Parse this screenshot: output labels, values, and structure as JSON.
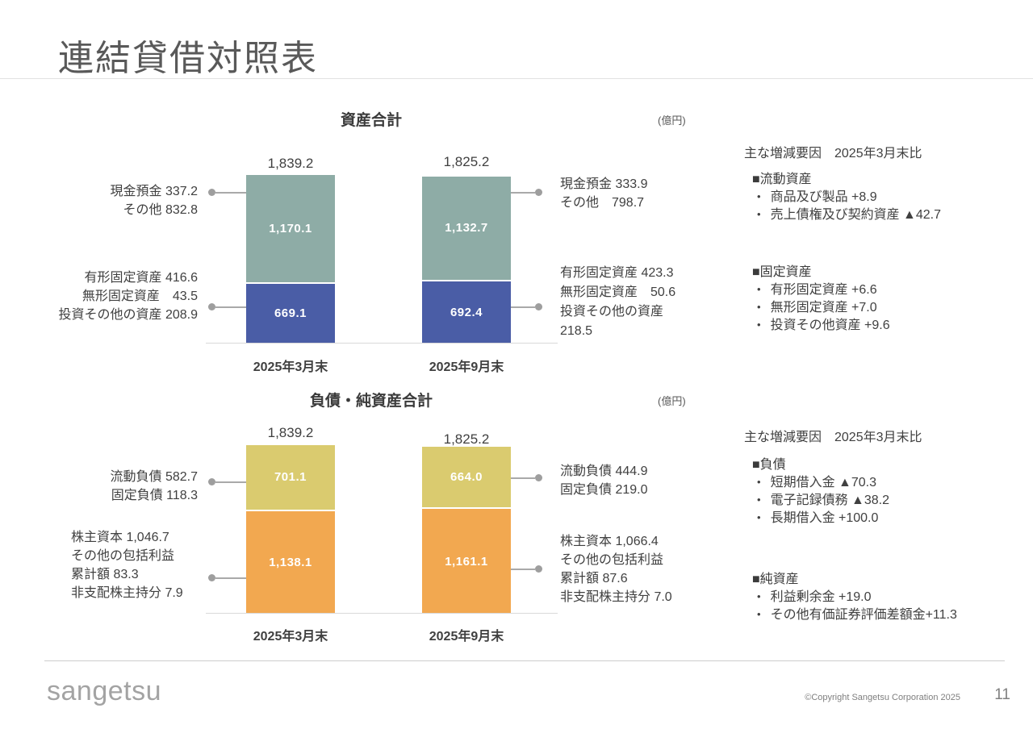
{
  "slide_title": "連結貸借対照表",
  "chart_data": [
    {
      "type": "bar",
      "stacked": true,
      "title": "資産合計",
      "unit_label": "(億円)",
      "categories": [
        "2025年3月末",
        "2025年9月末"
      ],
      "totals": [
        1839.2,
        1825.2
      ],
      "total_labels": [
        "1,839.2",
        "1,825.2"
      ],
      "series": [
        {
          "name": "流動資産",
          "color": "#8EACA6",
          "values": [
            1170.1,
            1132.7
          ],
          "value_labels": [
            "1,170.1",
            "1,132.7"
          ]
        },
        {
          "name": "固定資産",
          "color": "#4A5DA6",
          "values": [
            669.1,
            692.4
          ],
          "value_labels": [
            "669.1",
            "692.4"
          ]
        }
      ],
      "ylim": [
        0,
        1900
      ],
      "grid": false,
      "legend": "none"
    },
    {
      "type": "bar",
      "stacked": true,
      "title": "負債・純資産合計",
      "unit_label": "(億円)",
      "categories": [
        "2025年3月末",
        "2025年9月末"
      ],
      "totals": [
        1839.2,
        1825.2
      ],
      "total_labels": [
        "1,839.2",
        "1,825.2"
      ],
      "series": [
        {
          "name": "負債",
          "color": "#DACB6F",
          "values": [
            701.1,
            664.0
          ],
          "value_labels": [
            "701.1",
            "664.0"
          ]
        },
        {
          "name": "純資産",
          "color": "#F2A850",
          "values": [
            1138.1,
            1161.1
          ],
          "value_labels": [
            "1,138.1",
            "1,161.1"
          ]
        }
      ],
      "ylim": [
        0,
        1900
      ],
      "grid": false,
      "legend": "none"
    }
  ],
  "annotations": {
    "assets_left": [
      {
        "lines": [
          "現金預金 337.2",
          "その他 832.8"
        ]
      },
      {
        "lines": [
          "有形固定資産 416.6",
          "無形固定資産　43.5",
          "投資その他の資産 208.9"
        ]
      }
    ],
    "assets_right": [
      {
        "lines": [
          "現金預金 333.9",
          "その他　798.7"
        ]
      },
      {
        "lines": [
          "有形固定資産 423.3",
          "無形固定資産　50.6",
          "投資その他の資産",
          "218.5"
        ]
      }
    ],
    "liabilities_left": [
      {
        "lines": [
          "流動負債 582.7",
          "固定負債 118.3"
        ]
      },
      {
        "lines": [
          "株主資本 1,046.7",
          "その他の包括利益",
          "累計額 83.3",
          "非支配株主持分 7.9"
        ]
      }
    ],
    "liabilities_right": [
      {
        "lines": [
          "流動負債 444.9",
          "固定負債 219.0"
        ]
      },
      {
        "lines": [
          "株主資本 1,066.4",
          "その他の包括利益",
          "累計額 87.6",
          "非支配株主持分 7.0"
        ]
      }
    ]
  },
  "factors": {
    "assets": {
      "heading": "主な増減要因　2025年3月末比",
      "groups": [
        {
          "label": "■流動資産",
          "items": [
            "商品及び製品 +8.9",
            "売上債権及び契約資産 ▲42.7"
          ]
        },
        {
          "label": "■固定資産",
          "items": [
            "有形固定資産 +6.6",
            "無形固定資産 +7.0",
            "投資その他資産 +9.6"
          ]
        }
      ]
    },
    "liabilities": {
      "heading": "主な増減要因　2025年3月末比",
      "groups": [
        {
          "label": "■負債",
          "items": [
            "短期借入金 ▲70.3",
            "電子記録債務 ▲38.2",
            "長期借入金 +100.0"
          ]
        },
        {
          "label": "■純資産",
          "items": [
            "利益剰余金 +19.0",
            "その他有価証券評価差額金+11.3"
          ]
        }
      ]
    }
  },
  "footer": {
    "logo_text": "sangetsu",
    "copyright": "©Copyright Sangetsu Corporation 2025",
    "page_number": "11"
  }
}
